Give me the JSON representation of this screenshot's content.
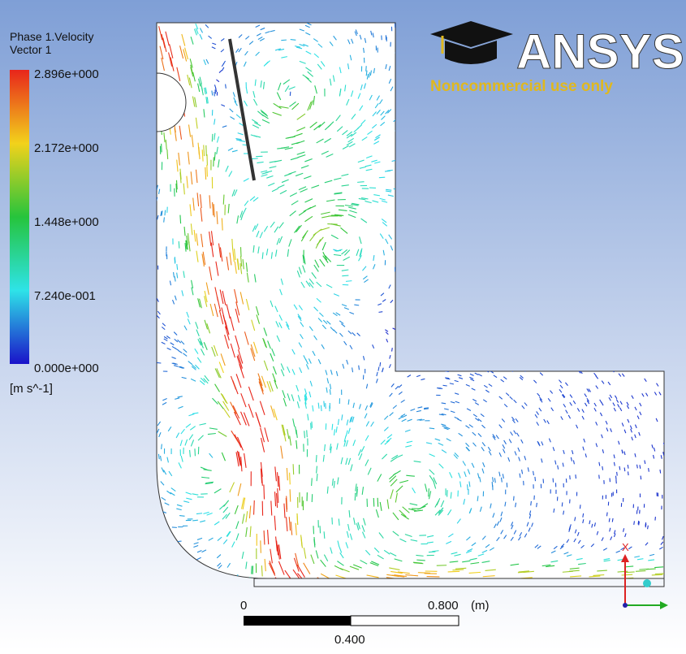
{
  "legend": {
    "title": "Phase 1.Velocity",
    "subtitle": "Vector 1",
    "ticks": [
      "2.896e+000",
      "2.172e+000",
      "1.448e+000",
      "7.240e-001",
      "0.000e+000"
    ],
    "units": "[m s^-1]"
  },
  "logo": {
    "brand": "ANSYS",
    "note": "Noncommercial use only"
  },
  "scale": {
    "start": "0",
    "end": "0.800",
    "unit": "(m)",
    "mid": "0.400"
  },
  "axis": {
    "x": "X"
  }
}
